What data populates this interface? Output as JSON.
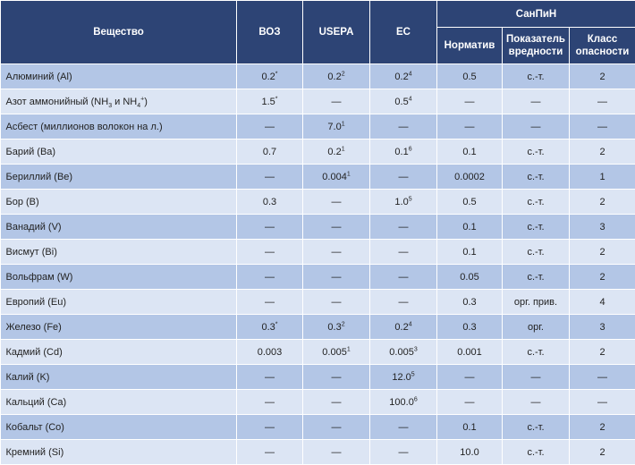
{
  "header": {
    "substance": "Вещество",
    "who": "ВОЗ",
    "usepa": "USEPA",
    "ec": "ЕС",
    "sanpin": "СанПиН",
    "norm": "Норматив",
    "indicator": "Показатель вредности",
    "hazard_class": "Класс опасности"
  },
  "rows": [
    {
      "name": "Алюминий (Al)",
      "who": "0.2",
      "who_note": "*",
      "usepa": "0.2",
      "usepa_note": "2",
      "ec": "0.2",
      "ec_note": "4",
      "norm": "0.5",
      "indicator": "с.-т.",
      "hazard": "2"
    },
    {
      "name_a": "Азот аммонийный (NH",
      "name_sub1": "3",
      "name_b": " и NH",
      "name_sub2": "4",
      "name_sup": "+",
      "name_c": ")",
      "who": "1.5",
      "who_note": "*",
      "usepa": "—",
      "usepa_note": "",
      "ec": "0.5",
      "ec_note": "4",
      "norm": "—",
      "indicator": "—",
      "hazard": "—"
    },
    {
      "name": "Асбест (миллионов волокон на л.)",
      "who": "—",
      "who_note": "",
      "usepa": "7.0",
      "usepa_note": "1",
      "ec": "—",
      "ec_note": "",
      "norm": "—",
      "indicator": "—",
      "hazard": "—"
    },
    {
      "name": "Барий (Ba)",
      "who": "0.7",
      "who_note": "",
      "usepa": "0.2",
      "usepa_note": "1",
      "ec": "0.1",
      "ec_note": "6",
      "norm": "0.1",
      "indicator": "с.-т.",
      "hazard": "2"
    },
    {
      "name": "Бериллий (Be)",
      "who": "—",
      "who_note": "",
      "usepa": "0.004",
      "usepa_note": "1",
      "ec": "—",
      "ec_note": "",
      "norm": "0.0002",
      "indicator": "с.-т.",
      "hazard": "1"
    },
    {
      "name": "Бор (B)",
      "who": "0.3",
      "who_note": "",
      "usepa": "—",
      "usepa_note": "",
      "ec": "1.0",
      "ec_note": "5",
      "norm": "0.5",
      "indicator": "с.-т.",
      "hazard": "2"
    },
    {
      "name": "Ванадий (V)",
      "who": "—",
      "who_note": "",
      "usepa": "—",
      "usepa_note": "",
      "ec": "—",
      "ec_note": "",
      "norm": "0.1",
      "indicator": "с.-т.",
      "hazard": "3"
    },
    {
      "name": "Висмут (Bi)",
      "who": "—",
      "who_note": "",
      "usepa": "—",
      "usepa_note": "",
      "ec": "—",
      "ec_note": "",
      "norm": "0.1",
      "indicator": "с.-т.",
      "hazard": "2"
    },
    {
      "name": "Вольфрам (W)",
      "who": "—",
      "who_note": "",
      "usepa": "—",
      "usepa_note": "",
      "ec": "—",
      "ec_note": "",
      "norm": "0.05",
      "indicator": "с.-т.",
      "hazard": "2"
    },
    {
      "name": "Европий (Eu)",
      "who": "—",
      "who_note": "",
      "usepa": "—",
      "usepa_note": "",
      "ec": "—",
      "ec_note": "",
      "norm": "0.3",
      "indicator": "орг. прив.",
      "hazard": "4"
    },
    {
      "name": "Железо (Fe)",
      "who": "0.3",
      "who_note": "*",
      "usepa": "0.3",
      "usepa_note": "2",
      "ec": "0.2",
      "ec_note": "4",
      "norm": "0.3",
      "indicator": "орг.",
      "hazard": "3"
    },
    {
      "name": "Кадмий (Cd)",
      "who": "0.003",
      "who_note": "",
      "usepa": "0.005",
      "usepa_note": "1",
      "ec": "0.005",
      "ec_note": "3",
      "norm": "0.001",
      "indicator": "с.-т.",
      "hazard": "2"
    },
    {
      "name": "Калий (K)",
      "who": "—",
      "who_note": "",
      "usepa": "—",
      "usepa_note": "",
      "ec": "12.0",
      "ec_note": "5",
      "norm": "—",
      "indicator": "—",
      "hazard": "—"
    },
    {
      "name": "Кальций (Ca)",
      "who": "—",
      "who_note": "",
      "usepa": "—",
      "usepa_note": "",
      "ec": "100.0",
      "ec_note": "6",
      "norm": "—",
      "indicator": "—",
      "hazard": "—"
    },
    {
      "name": "Кобальт (Co)",
      "who": "—",
      "who_note": "",
      "usepa": "—",
      "usepa_note": "",
      "ec": "—",
      "ec_note": "",
      "norm": "0.1",
      "indicator": "с.-т.",
      "hazard": "2"
    },
    {
      "name": "Кремний (Si)",
      "who": "—",
      "who_note": "",
      "usepa": "—",
      "usepa_note": "",
      "ec": "—",
      "ec_note": "",
      "norm": "10.0",
      "indicator": "с.-т.",
      "hazard": "2"
    }
  ]
}
